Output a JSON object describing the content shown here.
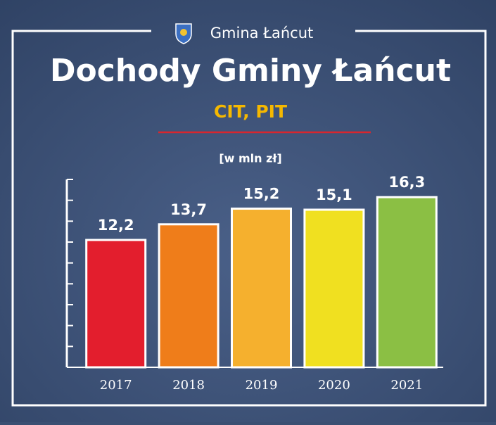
{
  "chart_data": {
    "type": "bar",
    "brand": "Gmina Łańcut",
    "title": "Dochody Gminy Łańcut",
    "subtitle": "CIT, PIT",
    "ylabel": "[w mln zł]",
    "categories": [
      "2017",
      "2018",
      "2019",
      "2020",
      "2021"
    ],
    "values": [
      12.2,
      13.7,
      15.2,
      15.1,
      16.3
    ],
    "value_labels": [
      "12,2",
      "13,7",
      "15,2",
      "15,1",
      "16,3"
    ],
    "colors": [
      "#e31e2d",
      "#ef7d1a",
      "#f5b02e",
      "#f0e020",
      "#8bbf44"
    ],
    "ylim": [
      0,
      18
    ],
    "yticks": [
      0,
      2,
      4,
      6,
      8,
      10,
      12,
      14,
      16,
      18
    ]
  }
}
